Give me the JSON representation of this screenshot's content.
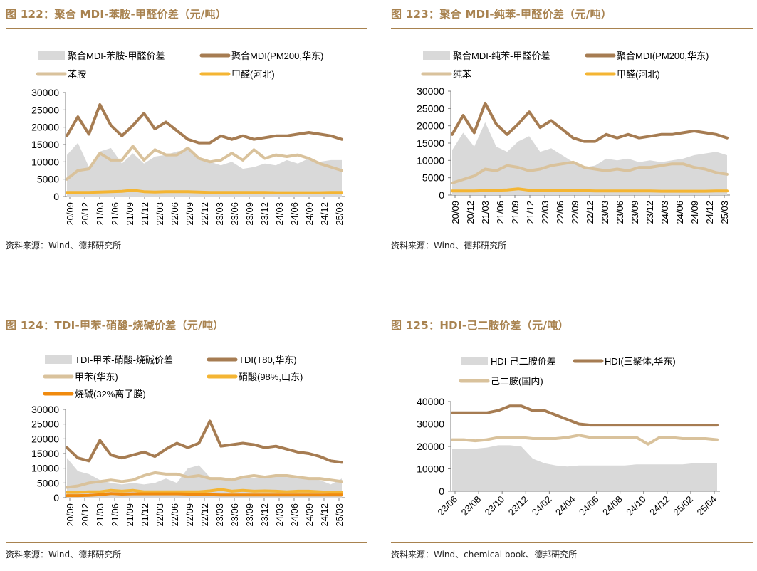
{
  "colors": {
    "title": "#a8824f",
    "area": "#d9d9d9",
    "product": "#a67c52",
    "mat1": "#d9c29c",
    "mat2": "#f4b533",
    "mat3": "#f08a0e"
  },
  "panels": [
    {
      "title": "图 122：聚合 MDI-苯胺-甲醛价差（元/吨）",
      "source": "资料来源：Wind、德邦研究所",
      "chart_data": {
        "type": "line",
        "ylim": [
          0,
          30000
        ],
        "yticks": [
          0,
          5000,
          10000,
          15000,
          20000,
          25000,
          30000
        ],
        "xticks": [
          "20/09",
          "20/12",
          "21/03",
          "21/06",
          "21/09",
          "21/12",
          "22/03",
          "22/06",
          "22/09",
          "22/12",
          "23/03",
          "23/06",
          "23/09",
          "23/12",
          "24/03",
          "24/06",
          "24/09",
          "24/12",
          "25/03"
        ],
        "series": [
          {
            "name": "聚合MDI-苯胺-甲醛价差",
            "kind": "area",
            "color": "area",
            "values": [
              12000,
              15500,
              8500,
              13000,
              14000,
              9500,
              12500,
              9500,
              11500,
              12000,
              13000,
              13500,
              11000,
              10000,
              9000,
              10000,
              8000,
              8500,
              9500,
              9000,
              10500,
              9500,
              11000,
              10000,
              10500,
              10500
            ]
          },
          {
            "name": "聚合MDI(PM200,华东)",
            "kind": "line",
            "color": "product",
            "values": [
              17500,
              23000,
              18000,
              26500,
              20500,
              17500,
              20500,
              24000,
              19500,
              21500,
              19000,
              16500,
              15500,
              15500,
              17500,
              16500,
              17500,
              16500,
              17000,
              17500,
              17500,
              18000,
              18500,
              18000,
              17500,
              16500
            ]
          },
          {
            "name": "苯胺",
            "kind": "line",
            "color": "mat1",
            "values": [
              5000,
              7500,
              8000,
              12500,
              10500,
              10500,
              14500,
              10500,
              13500,
              12000,
              12000,
              14000,
              11000,
              10000,
              10500,
              12500,
              10500,
              13500,
              11000,
              12000,
              11500,
              12000,
              11000,
              9500,
              8500,
              7500
            ]
          },
          {
            "name": "甲醛(河北)",
            "kind": "line",
            "color": "mat2",
            "values": [
              1200,
              1200,
              1200,
              1300,
              1400,
              1500,
              1800,
              1400,
              1300,
              1400,
              1400,
              1400,
              1300,
              1200,
              1200,
              1200,
              1200,
              1200,
              1200,
              1100,
              1100,
              1100,
              1100,
              1100,
              1200,
              1200
            ]
          }
        ]
      }
    },
    {
      "title": "图 123：聚合 MDI-纯苯-甲醛价差（元/吨）",
      "source": "资料来源：Wind、德邦研究所",
      "chart_data": {
        "type": "line",
        "ylim": [
          0,
          30000
        ],
        "yticks": [
          0,
          5000,
          10000,
          15000,
          20000,
          25000,
          30000
        ],
        "xticks": [
          "20/09",
          "20/12",
          "21/03",
          "21/06",
          "21/09",
          "21/12",
          "22/03",
          "22/06",
          "22/09",
          "22/12",
          "23/03",
          "23/06",
          "23/09",
          "23/12",
          "24/03",
          "24/06",
          "24/09",
          "24/12",
          "25/03"
        ],
        "series": [
          {
            "name": "聚合MDI-纯苯-甲醛价差",
            "kind": "area",
            "color": "area",
            "values": [
              13000,
              18000,
              14000,
              21000,
              14000,
              12500,
              15500,
              17000,
              12500,
              13500,
              11500,
              9500,
              8000,
              8500,
              10500,
              10000,
              10500,
              9500,
              10000,
              9500,
              10000,
              10500,
              11500,
              12000,
              12500,
              11500
            ]
          },
          {
            "name": "聚合MDI(PM200,华东)",
            "kind": "line",
            "color": "product",
            "values": [
              17500,
              23000,
              18000,
              26500,
              20500,
              17500,
              20500,
              24000,
              19500,
              21500,
              19000,
              16500,
              15500,
              15500,
              17500,
              16500,
              17500,
              16500,
              17000,
              17500,
              17500,
              18000,
              18500,
              18000,
              17500,
              16500
            ]
          },
          {
            "name": "纯苯",
            "kind": "line",
            "color": "mat1",
            "values": [
              3500,
              4500,
              5500,
              7500,
              7000,
              8500,
              8000,
              7000,
              7500,
              8500,
              9000,
              9500,
              8000,
              7500,
              7000,
              7500,
              7000,
              8000,
              8000,
              8500,
              9000,
              9000,
              8000,
              7500,
              6500,
              6000
            ]
          },
          {
            "name": "甲醛(河北)",
            "kind": "line",
            "color": "mat2",
            "values": [
              1200,
              1200,
              1200,
              1300,
              1400,
              1500,
              1800,
              1400,
              1300,
              1400,
              1400,
              1400,
              1300,
              1200,
              1200,
              1200,
              1200,
              1200,
              1200,
              1100,
              1100,
              1100,
              1100,
              1100,
              1200,
              1200
            ]
          }
        ]
      }
    },
    {
      "title": "图 124：TDI-甲苯-硝酸-烧碱价差（元/吨）",
      "source": "资料来源：Wind、德邦研究所",
      "chart_data": {
        "type": "line",
        "ylim": [
          0,
          30000
        ],
        "yticks": [
          0,
          5000,
          10000,
          15000,
          20000,
          25000,
          30000
        ],
        "xticks": [
          "20/09",
          "20/12",
          "21/03",
          "21/06",
          "21/09",
          "21/12",
          "22/03",
          "22/06",
          "22/09",
          "22/12",
          "23/03",
          "23/06",
          "23/09",
          "23/12",
          "24/03",
          "24/06",
          "24/09",
          "24/12",
          "25/03"
        ],
        "series": [
          {
            "name": "TDI-甲苯-硝酸-烧碱价差",
            "kind": "area",
            "color": "area",
            "values": [
              13500,
              9000,
              8000,
              6000,
              5000,
              4500,
              5000,
              4500,
              5000,
              6500,
              5000,
              10000,
              11000,
              7000,
              6500,
              5500,
              7500,
              6500,
              7000,
              8000,
              7000,
              7000,
              6500,
              6000,
              4500,
              6500
            ]
          },
          {
            "name": "TDI(T80,华东)",
            "kind": "line",
            "color": "product",
            "values": [
              17000,
              13500,
              12500,
              19500,
              14500,
              13500,
              14500,
              15500,
              14000,
              16500,
              18500,
              17000,
              18500,
              26000,
              17500,
              18000,
              18500,
              18000,
              17000,
              17500,
              16500,
              15500,
              15000,
              14000,
              12500,
              12000
            ]
          },
          {
            "name": "甲苯(华东)",
            "kind": "line",
            "color": "mat1",
            "values": [
              3500,
              4000,
              5000,
              5500,
              6000,
              5500,
              6000,
              7500,
              8500,
              8000,
              8000,
              7000,
              7500,
              6500,
              6500,
              6000,
              7000,
              7500,
              7000,
              7500,
              7500,
              7000,
              6500,
              6500,
              6000,
              5500
            ]
          },
          {
            "name": "硝酸(98%,山东)",
            "kind": "line",
            "color": "mat2",
            "values": [
              1800,
              1800,
              2000,
              2000,
              2500,
              2200,
              2500,
              2000,
              2000,
              2000,
              2000,
              2000,
              2000,
              2300,
              2800,
              2200,
              2500,
              2200,
              2300,
              2200,
              2000,
              2200,
              2200,
              2000,
              1800,
              1800
            ]
          },
          {
            "name": "烧碱(32%离子膜)",
            "kind": "line",
            "color": "mat3",
            "values": [
              700,
              700,
              800,
              1000,
              1400,
              1200,
              1300,
              1300,
              1300,
              1300,
              1300,
              1200,
              1100,
              1000,
              900,
              900,
              900,
              900,
              900,
              900,
              900,
              900,
              900,
              900,
              900,
              900
            ]
          }
        ]
      }
    },
    {
      "title": "图 125：HDI-己二胺价差（元/吨）",
      "source": "资料来源：Wind、chemical book、德邦研究所",
      "chart_data": {
        "type": "line",
        "ylim": [
          0,
          40000
        ],
        "yticks": [
          0,
          10000,
          20000,
          30000,
          40000
        ],
        "xticks": [
          "23/06",
          "23/08",
          "23/10",
          "23/12",
          "24/02",
          "24/04",
          "24/06",
          "24/08",
          "24/10",
          "24/12",
          "25/02",
          "25/04"
        ],
        "series": [
          {
            "name": "HDI-己二胺价差",
            "kind": "area",
            "color": "area",
            "values": [
              19000,
              19000,
              19000,
              19500,
              20500,
              20500,
              20000,
              14500,
              12500,
              11500,
              11000,
              11500,
              11500,
              11500,
              11500,
              11500,
              12000,
              12000,
              12000,
              12000,
              12000,
              12500,
              12500,
              12500
            ]
          },
          {
            "name": "HDI(三聚体,华东)",
            "kind": "line",
            "color": "product",
            "values": [
              35000,
              35000,
              35000,
              35000,
              36000,
              38000,
              38000,
              36000,
              36000,
              34000,
              32000,
              30000,
              29500,
              29500,
              29500,
              29500,
              29500,
              29500,
              29500,
              29500,
              29500,
              29500,
              29500,
              29500
            ]
          },
          {
            "name": "己二胺(国内)",
            "kind": "line",
            "color": "mat1",
            "values": [
              23000,
              23000,
              22500,
              23000,
              24000,
              24000,
              24000,
              23500,
              23500,
              23500,
              24000,
              25000,
              24000,
              24000,
              24000,
              24000,
              24000,
              21000,
              24000,
              24000,
              23500,
              23500,
              23500,
              23000
            ]
          }
        ]
      }
    }
  ]
}
